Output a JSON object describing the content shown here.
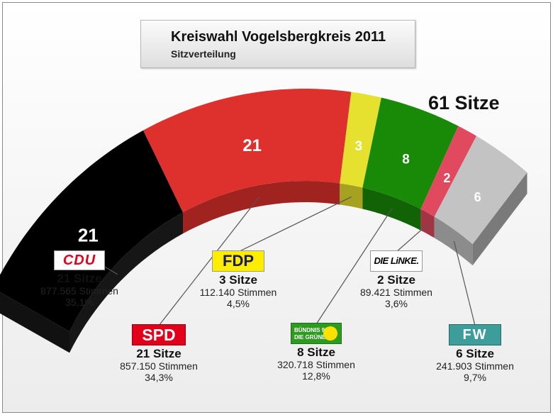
{
  "header": {
    "title": "Kreiswahl Vogelsbergkreis 2011",
    "subtitle": "Sitzverteilung"
  },
  "total_label": "61 Sitze",
  "colors": {
    "CDU": "#000000",
    "SPD": "#de302d",
    "FDP": "#e6e02e",
    "GRUENE": "#198a08",
    "LINKE": "#e14a5e",
    "FW": "#c3c3c3"
  },
  "parties": [
    {
      "key": "CDU",
      "logo": "CDU",
      "seats_label": "21 Sitze",
      "votes_label": "877.565 Stimmen",
      "pct_label": "35,1%"
    },
    {
      "key": "SPD",
      "logo": "SPD",
      "seats_label": "21 Sitze",
      "votes_label": "857.150 Stimmen",
      "pct_label": "34,3%"
    },
    {
      "key": "FDP",
      "logo": "FDP",
      "seats_label": "3 Sitze",
      "votes_label": "112.140 Stimmen",
      "pct_label": "4,5%"
    },
    {
      "key": "GRUENE",
      "logo_line1": "BÜNDNIS 90",
      "logo_line2": "DIE GRÜNEN",
      "seats_label": "8 Sitze",
      "votes_label": "320.718 Stimmen",
      "pct_label": "12,8%"
    },
    {
      "key": "LINKE",
      "logo": "DIE LiNKE.",
      "seats_label": "2 Sitze",
      "votes_label": "89.421 Stimmen",
      "pct_label": "3,6%"
    },
    {
      "key": "FW",
      "logo": "FW",
      "seats_label": "6 Sitze",
      "votes_label": "241.903 Stimmen",
      "pct_label": "9,7%"
    }
  ],
  "chart_data": {
    "type": "pie",
    "subtype": "parliament-arc",
    "title": "Kreiswahl Vogelsbergkreis 2011",
    "subtitle": "Sitzverteilung",
    "total": 61,
    "categories": [
      "CDU",
      "SPD",
      "FDP",
      "GRÜNE",
      "LINKE",
      "FW"
    ],
    "values": [
      21,
      21,
      3,
      8,
      2,
      6
    ],
    "data_labels": [
      "21",
      "21",
      "3",
      "8",
      "2",
      "6"
    ],
    "votes": [
      877565,
      857150,
      112140,
      320718,
      89421,
      241903
    ],
    "percent": [
      35.1,
      34.3,
      4.5,
      12.8,
      3.6,
      9.7
    ]
  }
}
